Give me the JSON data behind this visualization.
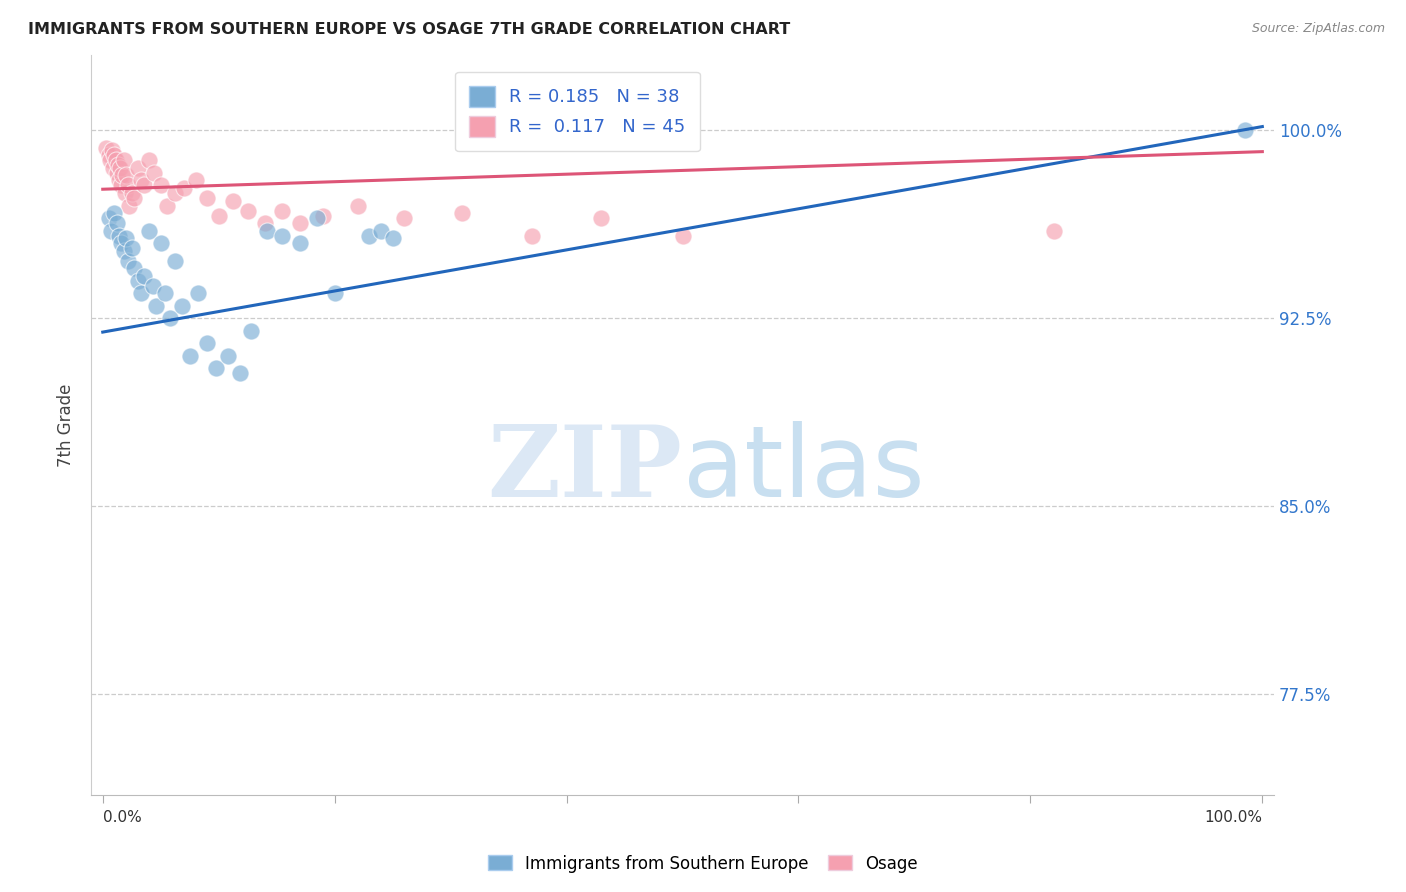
{
  "title": "IMMIGRANTS FROM SOUTHERN EUROPE VS OSAGE 7TH GRADE CORRELATION CHART",
  "source": "Source: ZipAtlas.com",
  "ylabel": "7th Grade",
  "yticks": [
    0.775,
    0.85,
    0.925,
    1.0
  ],
  "ytick_labels": [
    "77.5%",
    "85.0%",
    "92.5%",
    "100.0%"
  ],
  "xlim": [
    -0.01,
    1.01
  ],
  "ylim": [
    0.735,
    1.03
  ],
  "legend_r1": "R = 0.185",
  "legend_n1": "N = 38",
  "legend_r2": "R = 0.117",
  "legend_n2": "N = 45",
  "blue_color": "#7aadd4",
  "pink_color": "#f5a0b0",
  "line_blue": "#2266bb",
  "line_pink": "#dd5577",
  "blue_scatter_x": [
    0.005,
    0.007,
    0.01,
    0.012,
    0.014,
    0.016,
    0.018,
    0.02,
    0.022,
    0.025,
    0.027,
    0.03,
    0.033,
    0.036,
    0.04,
    0.043,
    0.046,
    0.05,
    0.054,
    0.058,
    0.062,
    0.068,
    0.075,
    0.082,
    0.09,
    0.098,
    0.108,
    0.118,
    0.128,
    0.142,
    0.155,
    0.17,
    0.185,
    0.2,
    0.23,
    0.24,
    0.25,
    0.985
  ],
  "blue_scatter_y": [
    0.965,
    0.96,
    0.967,
    0.963,
    0.958,
    0.955,
    0.952,
    0.957,
    0.948,
    0.953,
    0.945,
    0.94,
    0.935,
    0.942,
    0.96,
    0.938,
    0.93,
    0.955,
    0.935,
    0.925,
    0.948,
    0.93,
    0.91,
    0.935,
    0.915,
    0.905,
    0.91,
    0.903,
    0.92,
    0.96,
    0.958,
    0.955,
    0.965,
    0.935,
    0.958,
    0.96,
    0.957,
    1.0
  ],
  "pink_scatter_x": [
    0.003,
    0.005,
    0.006,
    0.008,
    0.009,
    0.01,
    0.011,
    0.012,
    0.013,
    0.014,
    0.015,
    0.016,
    0.017,
    0.018,
    0.019,
    0.02,
    0.022,
    0.023,
    0.025,
    0.027,
    0.03,
    0.033,
    0.036,
    0.04,
    0.044,
    0.05,
    0.055,
    0.062,
    0.07,
    0.08,
    0.09,
    0.1,
    0.112,
    0.125,
    0.14,
    0.155,
    0.17,
    0.19,
    0.22,
    0.26,
    0.31,
    0.37,
    0.43,
    0.5,
    0.82
  ],
  "pink_scatter_y": [
    0.993,
    0.99,
    0.988,
    0.992,
    0.985,
    0.99,
    0.988,
    0.983,
    0.986,
    0.98,
    0.985,
    0.978,
    0.982,
    0.988,
    0.975,
    0.982,
    0.978,
    0.97,
    0.975,
    0.973,
    0.985,
    0.98,
    0.978,
    0.988,
    0.983,
    0.978,
    0.97,
    0.975,
    0.977,
    0.98,
    0.973,
    0.966,
    0.972,
    0.968,
    0.963,
    0.968,
    0.963,
    0.966,
    0.97,
    0.965,
    0.967,
    0.958,
    0.965,
    0.958,
    0.96
  ],
  "blue_line_x": [
    0.0,
    1.0
  ],
  "blue_line_y": [
    0.9195,
    1.0015
  ],
  "pink_line_x": [
    0.0,
    1.0
  ],
  "pink_line_y": [
    0.9765,
    0.9915
  ],
  "watermark_zip": "ZIP",
  "watermark_atlas": "atlas",
  "legend_x1_label": "Immigrants from Southern Europe",
  "legend_x2_label": "Osage"
}
